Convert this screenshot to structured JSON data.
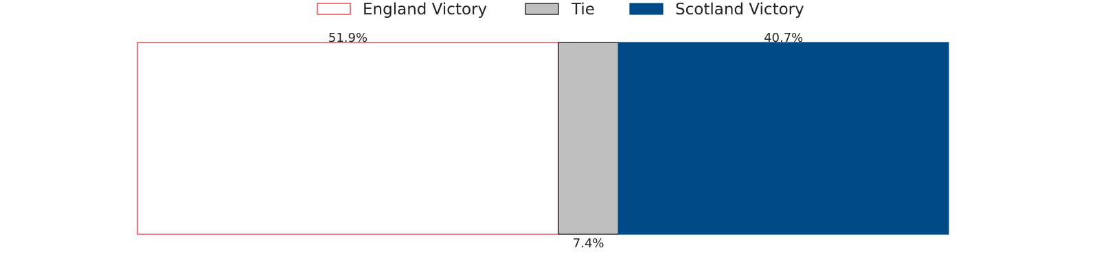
{
  "chart_data": {
    "type": "bar",
    "orientation": "horizontal-stacked-100",
    "title": "",
    "xlabel": "",
    "ylabel": "",
    "xlim": [
      0,
      100
    ],
    "grid": false,
    "axes_visible": false,
    "legend_position": "top-center",
    "series": [
      {
        "name": "England Victory",
        "value": 51.9,
        "label": "51.9%",
        "fill": "#ffffff",
        "edge": "#e8202a",
        "label_position": "top"
      },
      {
        "name": "Tie",
        "value": 7.4,
        "label": "7.4%",
        "fill": "#bfbfbf",
        "edge": "#000000",
        "label_position": "bottom"
      },
      {
        "name": "Scotland Victory",
        "value": 40.7,
        "label": "40.7%",
        "fill": "#004b87",
        "edge": "#004b87",
        "label_position": "top"
      }
    ]
  }
}
